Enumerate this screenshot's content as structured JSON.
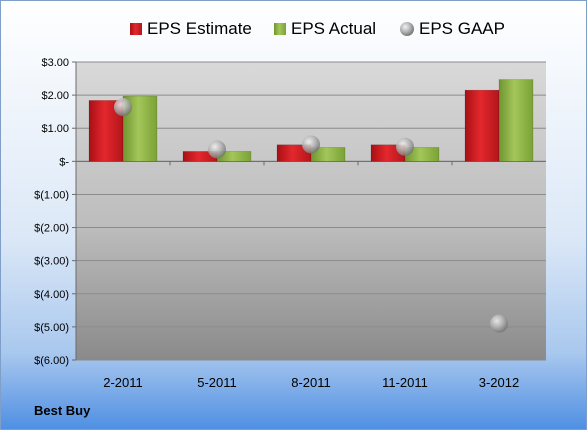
{
  "chart_data": {
    "type": "bar",
    "title": "",
    "xlabel": "",
    "ylabel": "",
    "categories": [
      "2-2011",
      "5-2011",
      "8-2011",
      "11-2011",
      "3-2012"
    ],
    "series": [
      {
        "name": "EPS Estimate",
        "kind": "bar",
        "color": "#d0181e",
        "values": [
          1.84,
          0.3,
          0.5,
          0.5,
          2.15
        ]
      },
      {
        "name": "EPS Actual",
        "kind": "bar",
        "color": "#8db33e",
        "values": [
          1.97,
          0.3,
          0.42,
          0.42,
          2.47
        ]
      },
      {
        "name": "EPS GAAP",
        "kind": "marker",
        "color": "#9a9a9a",
        "values": [
          1.64,
          0.36,
          0.51,
          0.44,
          -4.9
        ]
      }
    ],
    "ylim": [
      -6.0,
      3.0
    ],
    "yticks": [
      3.0,
      2.0,
      1.0,
      0.0,
      -1.0,
      -2.0,
      -3.0,
      -4.0,
      -5.0,
      -6.0
    ],
    "ytick_labels": [
      "$3.00",
      "$2.00",
      "$1.00",
      "$-",
      "$(1.00)",
      "$(2.00)",
      "$(3.00)",
      "$(4.00)",
      "$(5.00)",
      "$(6.00)"
    ],
    "grid": true,
    "legend_position": "top"
  },
  "footer": {
    "company": "Best Buy"
  }
}
